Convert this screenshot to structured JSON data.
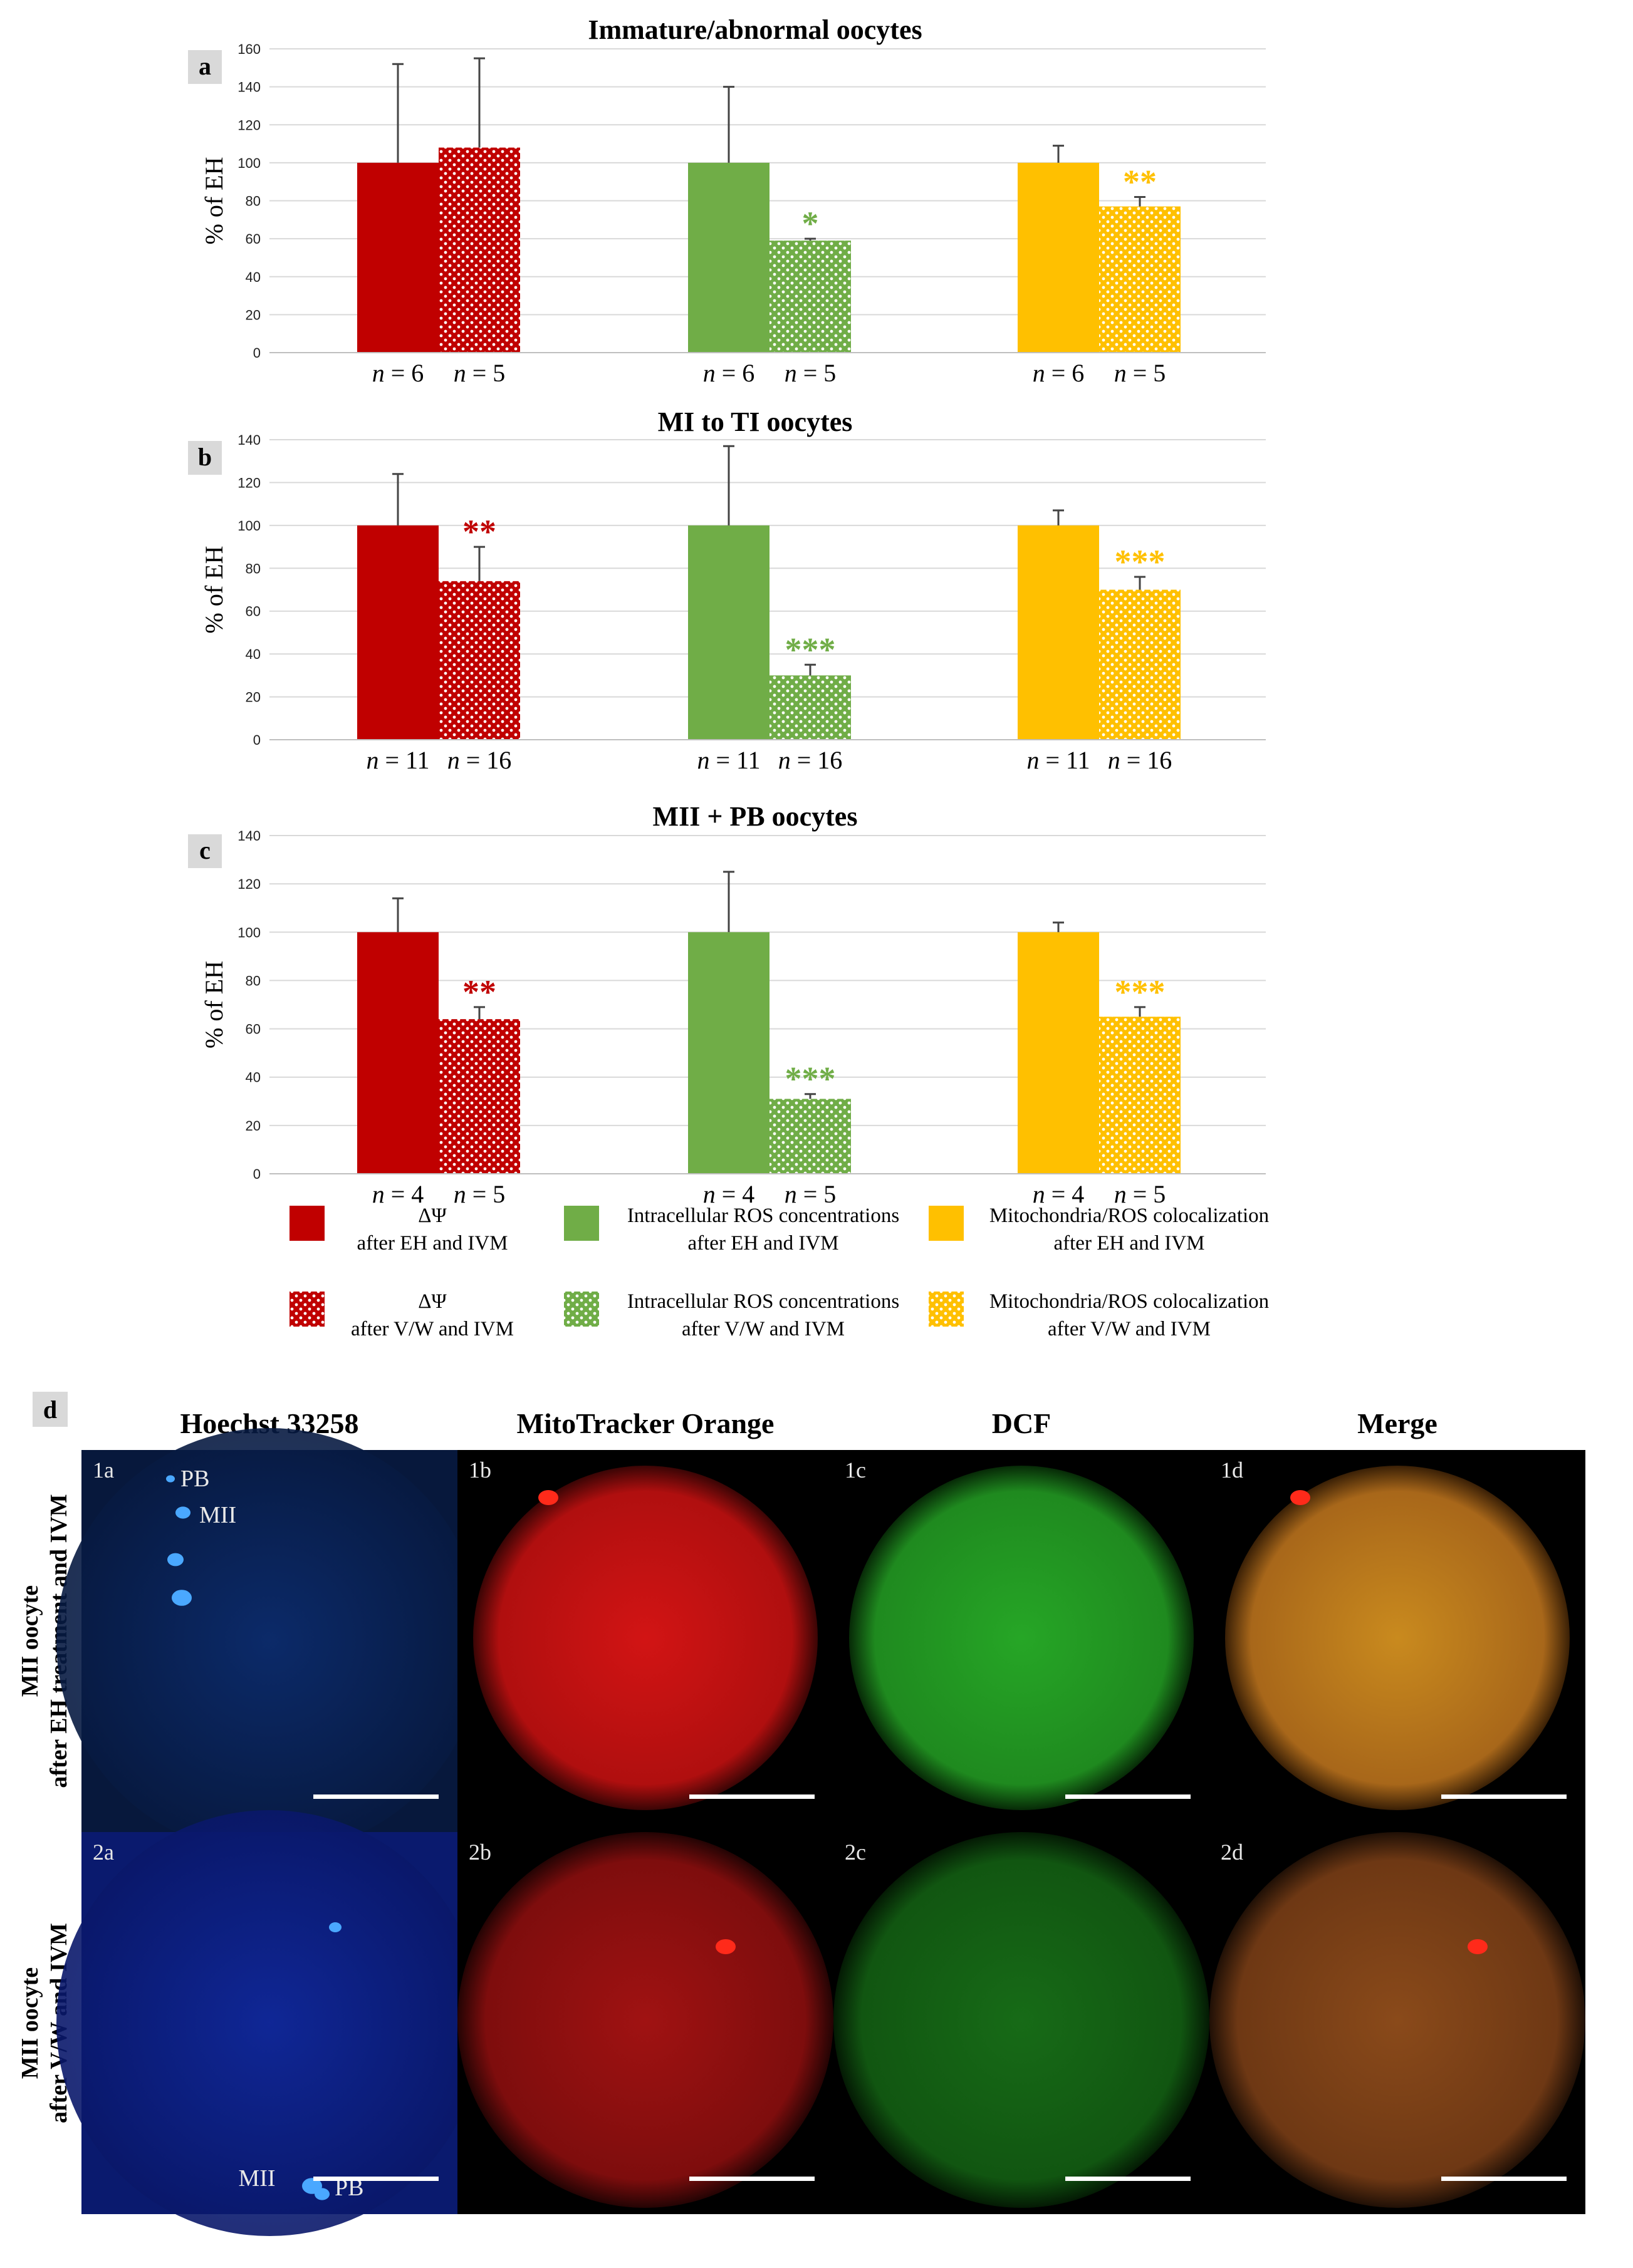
{
  "chart_data": [
    {
      "type": "bar",
      "panel_tag": "a",
      "title": "Immature/abnormal oocytes",
      "ylabel": "% of EH",
      "ylim": [
        0,
        160
      ],
      "yticks": [
        "0",
        "20",
        "40",
        "60",
        "80",
        "100",
        "120",
        "140",
        "160"
      ],
      "groups": [
        {
          "color": "#c00000",
          "bars": [
            {
              "value": 100,
              "error": 52,
              "n_label": "n = 6",
              "sig": ""
            },
            {
              "value": 108,
              "error": 47,
              "n_label": "n = 5",
              "sig": ""
            }
          ]
        },
        {
          "color": "#70ad47",
          "bars": [
            {
              "value": 100,
              "error": 40,
              "n_label": "n = 6",
              "sig": ""
            },
            {
              "value": 59,
              "error": 1,
              "n_label": "n = 5",
              "sig": "*"
            }
          ]
        },
        {
          "color": "#ffc000",
          "bars": [
            {
              "value": 100,
              "error": 9,
              "n_label": "n = 6",
              "sig": ""
            },
            {
              "value": 77,
              "error": 5,
              "n_label": "n = 5",
              "sig": "**"
            }
          ]
        }
      ]
    },
    {
      "type": "bar",
      "panel_tag": "b",
      "title": "MI to TI oocytes",
      "ylabel": "% of EH",
      "ylim": [
        0,
        140
      ],
      "yticks": [
        "0",
        "20",
        "40",
        "60",
        "80",
        "100",
        "120",
        "140"
      ],
      "groups": [
        {
          "color": "#c00000",
          "bars": [
            {
              "value": 100,
              "error": 24,
              "n_label": "n = 11",
              "sig": ""
            },
            {
              "value": 74,
              "error": 16,
              "n_label": "n = 16",
              "sig": "**"
            }
          ]
        },
        {
          "color": "#70ad47",
          "bars": [
            {
              "value": 100,
              "error": 37,
              "n_label": "n = 11",
              "sig": ""
            },
            {
              "value": 30,
              "error": 5,
              "n_label": "n = 16",
              "sig": "***"
            }
          ]
        },
        {
          "color": "#ffc000",
          "bars": [
            {
              "value": 100,
              "error": 7,
              "n_label": "n = 11",
              "sig": ""
            },
            {
              "value": 70,
              "error": 6,
              "n_label": "n = 16",
              "sig": "***"
            }
          ]
        }
      ]
    },
    {
      "type": "bar",
      "panel_tag": "c",
      "title": "MII + PB oocytes",
      "ylabel": "% of EH",
      "ylim": [
        0,
        140
      ],
      "yticks": [
        "0",
        "20",
        "40",
        "60",
        "80",
        "100",
        "120",
        "140"
      ],
      "groups": [
        {
          "color": "#c00000",
          "bars": [
            {
              "value": 100,
              "error": 14,
              "n_label": "n = 4",
              "sig": ""
            },
            {
              "value": 64,
              "error": 5,
              "n_label": "n = 5",
              "sig": "**"
            }
          ]
        },
        {
          "color": "#70ad47",
          "bars": [
            {
              "value": 100,
              "error": 25,
              "n_label": "n = 4",
              "sig": ""
            },
            {
              "value": 31,
              "error": 2,
              "n_label": "n = 5",
              "sig": "***"
            }
          ]
        },
        {
          "color": "#ffc000",
          "bars": [
            {
              "value": 100,
              "error": 4,
              "n_label": "n = 4",
              "sig": ""
            },
            {
              "value": 65,
              "error": 4,
              "n_label": "n = 5",
              "sig": "***"
            }
          ]
        }
      ]
    }
  ],
  "legend": {
    "placement": "bottom",
    "items": [
      {
        "color": "#c00000",
        "pattern": false,
        "lines": [
          "ΔΨ",
          "after EH and IVM"
        ]
      },
      {
        "color": "#70ad47",
        "pattern": false,
        "lines": [
          "Intracellular ROS concentrations",
          "after EH and IVM"
        ]
      },
      {
        "color": "#ffc000",
        "pattern": false,
        "lines": [
          "Mitochondria/ROS colocalization",
          "after EH and IVM"
        ]
      },
      {
        "color": "#c00000",
        "pattern": true,
        "lines": [
          "ΔΨ",
          "after V/W and IVM"
        ]
      },
      {
        "color": "#70ad47",
        "pattern": true,
        "lines": [
          "Intracellular ROS concentrations",
          "after V/W and IVM"
        ]
      },
      {
        "color": "#ffc000",
        "pattern": true,
        "lines": [
          "Mitochondria/ROS colocalization",
          "after V/W and IVM"
        ]
      }
    ]
  },
  "micrographs": {
    "panel_tag": "d",
    "columns": [
      "Hoechst 33258",
      "MitoTracker Orange",
      "DCF",
      "Merge"
    ],
    "rows": [
      {
        "label_lines": [
          "MII oocyte",
          "after EH treatment and IVM"
        ],
        "tiles": [
          {
            "label": "1a",
            "stain": "blue",
            "annotations": [
              "PB",
              "MII"
            ]
          },
          {
            "label": "1b",
            "stain": "red",
            "annotations": []
          },
          {
            "label": "1c",
            "stain": "green",
            "annotations": []
          },
          {
            "label": "1d",
            "stain": "merge",
            "annotations": []
          }
        ]
      },
      {
        "label_lines": [
          "MII oocyte",
          "after V/W and IVM"
        ],
        "tiles": [
          {
            "label": "2a",
            "stain": "blue",
            "annotations": [
              "MII",
              "PB"
            ]
          },
          {
            "label": "2b",
            "stain": "red",
            "annotations": []
          },
          {
            "label": "2c",
            "stain": "green",
            "annotations": []
          },
          {
            "label": "2d",
            "stain": "merge",
            "annotations": []
          }
        ]
      }
    ]
  }
}
